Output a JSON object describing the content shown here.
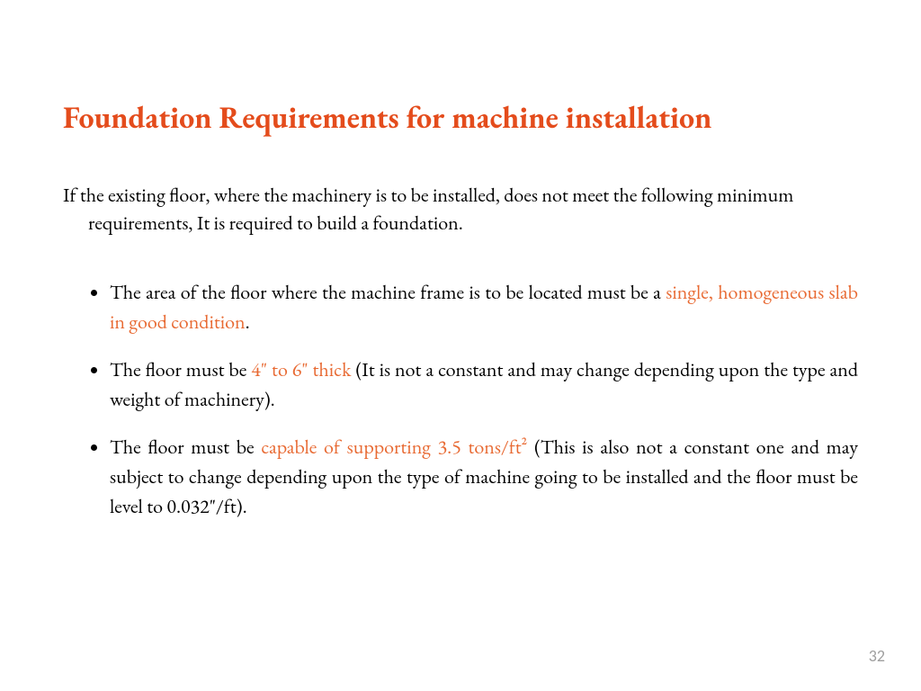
{
  "colors": {
    "title": "#e44c1c",
    "highlight": "#e86a33",
    "body_text": "#000000",
    "page_number": "#9e9e9e",
    "background": "#ffffff"
  },
  "typography": {
    "title_fontsize_pt": 26,
    "body_fontsize_pt": 17,
    "title_weight": "700",
    "font_family": "Garamond"
  },
  "title": "Foundation Requirements for machine installation",
  "intro": "If the existing floor, where the machinery is to be installed, does not meet the following minimum requirements, It is required to build a foundation.",
  "bullets": [
    {
      "pre": "The area of the floor where the machine frame is to be located must be a ",
      "highlight": "single, homogeneous slab in good condition",
      "post": "."
    },
    {
      "pre": "The floor must be ",
      "highlight": "4\" to 6\" thick",
      "post": " (It is not a constant and may change depending upon the type and weight of machinery)."
    },
    {
      "pre": "The floor must be ",
      "highlight": "capable of supporting 3.5 tons/ft²",
      "post": " (This is also not a constant one and may subject to change depending upon the type of machine going to be installed and the floor must be level to 0.032\"/ft)."
    }
  ],
  "page_number": "32"
}
